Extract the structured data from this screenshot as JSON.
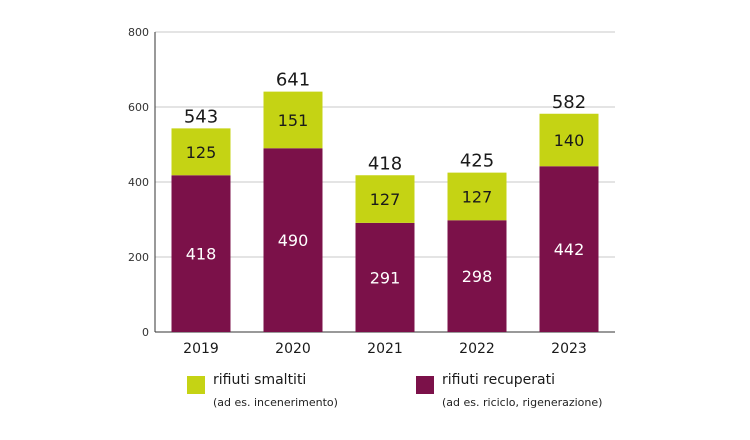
{
  "chart_data": {
    "type": "bar",
    "stacked": true,
    "categories": [
      "2019",
      "2020",
      "2021",
      "2022",
      "2023"
    ],
    "series": [
      {
        "name": "rifiuti recuperati",
        "note": "(ad es. riciclo, rigenerazione)",
        "color": "#7b1149",
        "values": [
          418,
          490,
          291,
          298,
          442
        ]
      },
      {
        "name": "rifiuti smaltiti",
        "note": "(ad es. incenerimento)",
        "color": "#c5d314",
        "values": [
          125,
          151,
          127,
          127,
          140
        ]
      }
    ],
    "totals": [
      543,
      641,
      418,
      425,
      582
    ],
    "ylim": [
      0,
      800
    ],
    "yticks": [
      0,
      200,
      400,
      600,
      800
    ],
    "grid": true,
    "legend_position": "bottom"
  }
}
